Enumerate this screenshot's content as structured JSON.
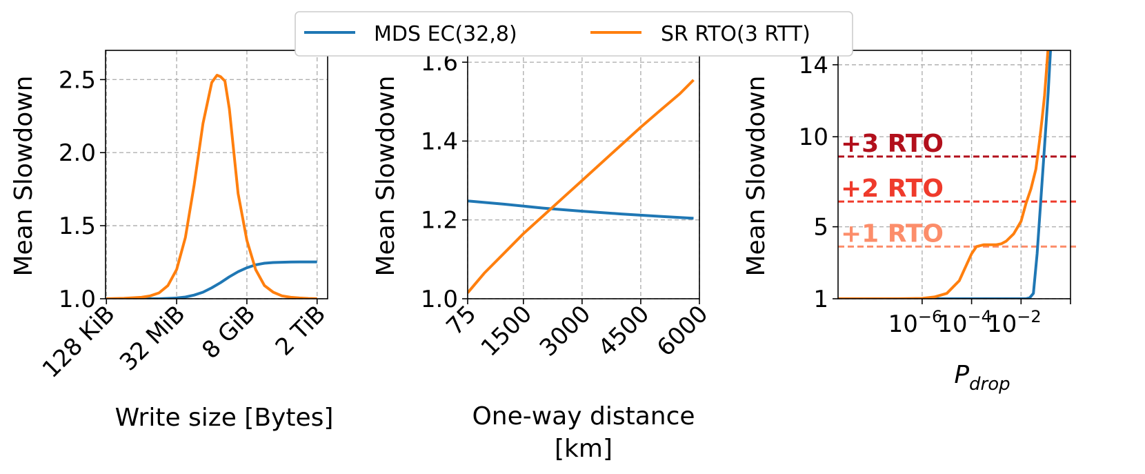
{
  "legend": {
    "entries": [
      {
        "label": "MDS EC(32,8)",
        "color": "#1f77b4"
      },
      {
        "label": "SR RTO(3 RTT)",
        "color": "#ff7f0e"
      }
    ],
    "placement": "top-center"
  },
  "chart_data": [
    {
      "type": "line",
      "ylabel": "Mean Slowdown",
      "xlabel": "Write size [Bytes]",
      "x_scale": "log2",
      "x_ticks": [
        17,
        25,
        33,
        41
      ],
      "x_tick_labels": [
        "128 KiB",
        "32 MiB",
        "8 GiB",
        "2 TiB"
      ],
      "xlim": [
        16.9,
        42.2
      ],
      "ylim": [
        1.0,
        2.7
      ],
      "y_ticks": [
        1.0,
        1.5,
        2.0,
        2.5
      ],
      "y_tick_labels": [
        "1.0",
        "1.5",
        "2.0",
        "2.5"
      ],
      "grid": true,
      "series": [
        {
          "name": "MDS EC(32,8)",
          "color": "#1f77b4",
          "x": [
            17,
            19,
            21,
            23,
            25,
            26,
            27,
            28,
            29,
            30,
            31,
            32,
            33,
            34,
            35,
            36,
            37,
            38,
            39,
            40,
            41
          ],
          "y": [
            1.0,
            1.0,
            1.0,
            1.0,
            1.005,
            1.012,
            1.025,
            1.045,
            1.075,
            1.11,
            1.15,
            1.185,
            1.212,
            1.232,
            1.243,
            1.248,
            1.25,
            1.251,
            1.252,
            1.252,
            1.252
          ]
        },
        {
          "name": "SR RTO(3 RTT)",
          "color": "#ff7f0e",
          "x": [
            17,
            19,
            21,
            22,
            23,
            24,
            25,
            26,
            27,
            28,
            29,
            29.6,
            30,
            30.5,
            31,
            32,
            33,
            34,
            35,
            36,
            37,
            38,
            39,
            40,
            41
          ],
          "y": [
            1.0,
            1.003,
            1.01,
            1.02,
            1.04,
            1.09,
            1.2,
            1.42,
            1.78,
            2.2,
            2.48,
            2.53,
            2.52,
            2.49,
            2.3,
            1.72,
            1.4,
            1.2,
            1.09,
            1.045,
            1.02,
            1.01,
            1.005,
            1.002,
            1.0
          ]
        }
      ]
    },
    {
      "type": "line",
      "ylabel": "Mean Slowdown",
      "xlabel": "One-way distance",
      "xlabel_line2": "[km]",
      "xlim": [
        75,
        6000
      ],
      "x_ticks": [
        75,
        1500,
        3000,
        4500,
        6000
      ],
      "x_tick_labels": [
        "75",
        "1500",
        "3000",
        "4500",
        "6000"
      ],
      "ylim": [
        1.0,
        1.63
      ],
      "y_ticks": [
        1.0,
        1.2,
        1.4,
        1.6
      ],
      "y_tick_labels": [
        "1.0",
        "1.2",
        "1.4",
        "1.6"
      ],
      "grid": true,
      "series": [
        {
          "name": "MDS EC(32,8)",
          "color": "#1f77b4",
          "x": [
            75,
            1000,
            2000,
            3000,
            4000,
            5000,
            5850
          ],
          "y": [
            1.248,
            1.24,
            1.23,
            1.222,
            1.215,
            1.209,
            1.204
          ]
        },
        {
          "name": "SR RTO(3 RTT)",
          "color": "#ff7f0e",
          "x": [
            75,
            500,
            1000,
            1500,
            2000,
            2500,
            3000,
            3500,
            4000,
            4500,
            5000,
            5500,
            5850
          ],
          "y": [
            1.015,
            1.065,
            1.115,
            1.165,
            1.21,
            1.255,
            1.3,
            1.345,
            1.39,
            1.435,
            1.478,
            1.52,
            1.555
          ]
        }
      ]
    },
    {
      "type": "line",
      "ylabel": "Mean Slowdown",
      "xlabel": "P",
      "xlabel_sub": "drop",
      "x_scale": "log10",
      "xlim": [
        -9.4,
        0.0
      ],
      "x_ticks": [
        -6,
        -4,
        -2
      ],
      "x_tick_bases": [
        "10",
        "10",
        "10"
      ],
      "x_tick_exponents": [
        "−6",
        "−4",
        "−2"
      ],
      "ylim": [
        1,
        14.8
      ],
      "y_ticks": [
        1,
        5,
        10,
        14
      ],
      "y_tick_labels": [
        "1",
        "5",
        "10",
        "14"
      ],
      "grid": true,
      "reference_lines": [
        {
          "label": "+1 RTO",
          "y": 3.9,
          "color": "#fc8d6a"
        },
        {
          "label": "+2 RTO",
          "y": 6.4,
          "color": "#ef3b2c"
        },
        {
          "label": "+3 RTO",
          "y": 8.9,
          "color": "#b2101c"
        }
      ],
      "series": [
        {
          "name": "MDS EC(32,8)",
          "color": "#1f77b4",
          "x": [
            -9.4,
            -6,
            -4,
            -2.5,
            -1.8,
            -1.65,
            -1.5,
            -1.35,
            -1.2,
            -1.05,
            -0.9,
            -0.8
          ],
          "y": [
            1.0,
            1.0,
            1.0,
            1.0,
            1.0,
            1.05,
            1.3,
            3.5,
            6.5,
            9.5,
            12.5,
            15.0
          ]
        },
        {
          "name": "SR RTO(3 RTT)",
          "color": "#ff7f0e",
          "x": [
            -9.4,
            -7,
            -6,
            -5.5,
            -5,
            -4.5,
            -4.2,
            -4,
            -3.8,
            -3.5,
            -3.2,
            -3,
            -2.8,
            -2.6,
            -2.3,
            -2,
            -1.8,
            -1.6,
            -1.4,
            -1.25,
            -1.15,
            -1.05,
            -0.9
          ],
          "y": [
            1.0,
            1.0,
            1.02,
            1.1,
            1.3,
            2.0,
            2.9,
            3.5,
            3.9,
            4.0,
            4.0,
            4.0,
            4.05,
            4.2,
            4.6,
            5.3,
            6.3,
            7.1,
            8.2,
            9.8,
            11.0,
            12.3,
            15.0
          ]
        }
      ]
    }
  ]
}
